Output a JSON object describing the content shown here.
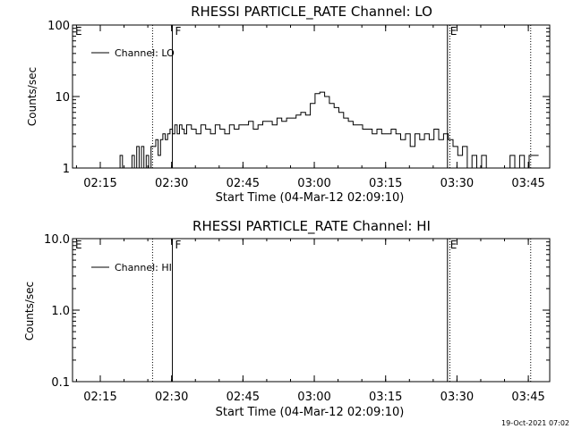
{
  "footer": {
    "timestamp": "19-Oct-2021 07:02"
  },
  "chart_data": [
    {
      "type": "line",
      "title": "RHESSI PARTICLE_RATE Channel: LO",
      "xlabel": "Start Time (04-Mar-12 02:09:10)",
      "ylabel": "Counts/sec",
      "y_scale": "log",
      "xlim": [
        "02:09:10",
        "03:49:30"
      ],
      "ylim": [
        1,
        100
      ],
      "x_ticks": [
        "02:15",
        "02:30",
        "02:45",
        "03:00",
        "03:15",
        "03:30",
        "03:45"
      ],
      "y_ticks": [
        {
          "value": 1,
          "label": "1"
        },
        {
          "value": 10,
          "label": "10"
        },
        {
          "value": 100,
          "label": "100"
        }
      ],
      "legend": {
        "position": "top-left",
        "entries": [
          "Channel: LO"
        ]
      },
      "markers": [
        {
          "label": "E",
          "time": "02:09:10",
          "style": "dotted"
        },
        {
          "label": "",
          "time": "02:26:00",
          "style": "dotted"
        },
        {
          "label": "F",
          "time": "02:30:10",
          "style": "solid"
        },
        {
          "label": "E",
          "time": "03:28:00",
          "style": "solid"
        },
        {
          "label": "",
          "time": "03:28:30",
          "style": "dotted"
        },
        {
          "label": "",
          "time": "03:45:30",
          "style": "dotted"
        }
      ],
      "series": [
        {
          "name": "Channel: LO",
          "x": [
            "02:18:40",
            "02:19:10",
            "02:19:40",
            "02:20:10",
            "02:20:40",
            "02:21:10",
            "02:21:40",
            "02:22:10",
            "02:22:40",
            "02:23:10",
            "02:23:40",
            "02:24:10",
            "02:24:40",
            "02:25:10",
            "02:25:40",
            "02:26:10",
            "02:26:40",
            "02:27:10",
            "02:27:40",
            "02:28:10",
            "02:28:40",
            "02:29:10",
            "02:29:40",
            "02:30:10",
            "02:30:40",
            "02:31:10",
            "02:31:40",
            "02:32:10",
            "02:32:40",
            "02:33:10",
            "02:34:10",
            "02:35:10",
            "02:36:10",
            "02:37:10",
            "02:38:10",
            "02:39:10",
            "02:40:10",
            "02:41:10",
            "02:42:10",
            "02:43:10",
            "02:44:10",
            "02:45:10",
            "02:46:10",
            "02:47:10",
            "02:48:10",
            "02:49:10",
            "02:50:10",
            "02:51:10",
            "02:52:10",
            "02:53:10",
            "02:54:10",
            "02:55:10",
            "02:56:10",
            "02:57:10",
            "02:58:10",
            "02:59:10",
            "03:00:10",
            "03:01:10",
            "03:02:10",
            "03:03:10",
            "03:04:10",
            "03:05:10",
            "03:06:10",
            "03:07:10",
            "03:08:10",
            "03:09:10",
            "03:10:10",
            "03:11:10",
            "03:12:10",
            "03:13:10",
            "03:14:10",
            "03:15:10",
            "03:16:10",
            "03:17:10",
            "03:18:10",
            "03:19:10",
            "03:20:10",
            "03:21:10",
            "03:22:10",
            "03:23:10",
            "03:24:10",
            "03:25:10",
            "03:26:10",
            "03:27:10",
            "03:28:10",
            "03:29:10",
            "03:30:10",
            "03:31:10",
            "03:32:10",
            "03:33:10",
            "03:34:10",
            "03:35:10",
            "03:36:10",
            "03:37:10",
            "03:38:10",
            "03:39:10",
            "03:40:10",
            "03:41:10",
            "03:42:10",
            "03:43:10",
            "03:44:10",
            "03:45:10",
            "03:46:10"
          ],
          "values": [
            1,
            1.5,
            1,
            1,
            1,
            1,
            1.5,
            1,
            2,
            1,
            2,
            1,
            1.5,
            1,
            2,
            2,
            2.5,
            1.5,
            2.5,
            3,
            2.5,
            3,
            3.5,
            3,
            4,
            3,
            4,
            3.5,
            3,
            4,
            3.5,
            3,
            4,
            3.5,
            3,
            4,
            3.5,
            3,
            4,
            3.5,
            4,
            4,
            4.5,
            3.5,
            4,
            4.5,
            4.5,
            4,
            5,
            4.5,
            5,
            5,
            5.5,
            6,
            5.5,
            8,
            11,
            11.5,
            10,
            8,
            7,
            6,
            5,
            4.5,
            4,
            4,
            3.5,
            3.5,
            3,
            3.5,
            3,
            3,
            3.5,
            3,
            2.5,
            3,
            2,
            3,
            2.5,
            3,
            2.5,
            3.5,
            2.5,
            3,
            2.5,
            2,
            1.5,
            2,
            1,
            1.5,
            1,
            1.5,
            1,
            1,
            1,
            1,
            1,
            1.5,
            1,
            1.5,
            1,
            1.5,
            1.5
          ]
        }
      ]
    },
    {
      "type": "line",
      "title": "RHESSI PARTICLE_RATE Channel: HI",
      "xlabel": "Start Time (04-Mar-12 02:09:10)",
      "ylabel": "Counts/sec",
      "y_scale": "log",
      "xlim": [
        "02:09:10",
        "03:49:30"
      ],
      "ylim": [
        0.1,
        10
      ],
      "x_ticks": [
        "02:15",
        "02:30",
        "02:45",
        "03:00",
        "03:15",
        "03:30",
        "03:45"
      ],
      "y_ticks": [
        {
          "value": 0.1,
          "label": "0.1"
        },
        {
          "value": 1,
          "label": "1.0"
        },
        {
          "value": 10,
          "label": "10.0"
        }
      ],
      "legend": {
        "position": "top-left",
        "entries": [
          "Channel: HI"
        ]
      },
      "markers": [
        {
          "label": "E",
          "time": "02:09:10",
          "style": "dotted"
        },
        {
          "label": "",
          "time": "02:26:00",
          "style": "dotted"
        },
        {
          "label": "F",
          "time": "02:30:10",
          "style": "solid"
        },
        {
          "label": "E",
          "time": "03:28:00",
          "style": "solid"
        },
        {
          "label": "",
          "time": "03:28:30",
          "style": "dotted"
        },
        {
          "label": "",
          "time": "03:45:30",
          "style": "dotted"
        }
      ],
      "series": [
        {
          "name": "Channel: HI",
          "x": [],
          "values": []
        }
      ]
    }
  ]
}
